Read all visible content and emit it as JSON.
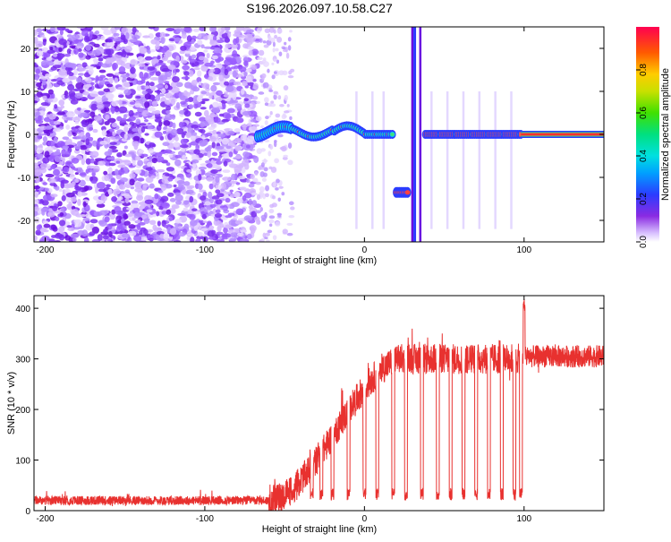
{
  "title": "S196.2026.097.10.58.C27",
  "chart_data": [
    {
      "type": "heatmap",
      "name": "spectrogram",
      "xlabel": "Height of straight line (km)",
      "ylabel": "Frequency (Hz)",
      "xlim": [
        -207,
        150
      ],
      "ylim": [
        -25,
        25
      ],
      "xticks": [
        -200,
        -100,
        0,
        100
      ],
      "yticks": [
        -20,
        -10,
        0,
        10,
        20
      ],
      "grid": false,
      "colormap": "rainbow",
      "colorbar": {
        "label": "Normalized spectral amplitude",
        "range": [
          0,
          1
        ],
        "ticks": [
          0.0,
          0.2,
          0.4,
          0.6,
          0.8
        ],
        "tick_labels": [
          "0.0",
          "0.2",
          "0.4",
          "0.6",
          "0.8"
        ]
      },
      "features": {
        "noise_region_km": [
          -207,
          -67
        ],
        "scattered_noise_km": [
          -67,
          -45
        ],
        "tone_frequency_hz": 0,
        "wandering_tone_km": [
          -67,
          18
        ],
        "jump_segment": {
          "x_km": [
            20,
            27
          ],
          "frequency_hz": -13.5
        },
        "broadband_spikes_km": [
          30,
          36
        ],
        "gated_tone_km": [
          38,
          98
        ],
        "steady_tone_km": [
          98,
          150
        ]
      }
    },
    {
      "type": "line",
      "name": "snr",
      "xlabel": "Height of straight line (km)",
      "ylabel": "SNR (10 * v/v)",
      "xlim": [
        -207,
        150
      ],
      "ylim": [
        0,
        425
      ],
      "xticks": [
        -200,
        -100,
        0,
        100
      ],
      "yticks": [
        0,
        100,
        200,
        300,
        400
      ],
      "grid": false,
      "color": "#e8312f",
      "baseline_low": 20,
      "rise": {
        "start_km": -60,
        "mid_km": 0,
        "plateau_km": 25
      },
      "plateau_level": 300,
      "final_level": 305,
      "peak": {
        "x": 100,
        "y": 420
      },
      "dips_km": [
        -45,
        -33,
        -27,
        -20,
        -10,
        0,
        8,
        18,
        26,
        36,
        46,
        54,
        62,
        70,
        78,
        86,
        94,
        98
      ],
      "dip_floor": 20
    }
  ]
}
